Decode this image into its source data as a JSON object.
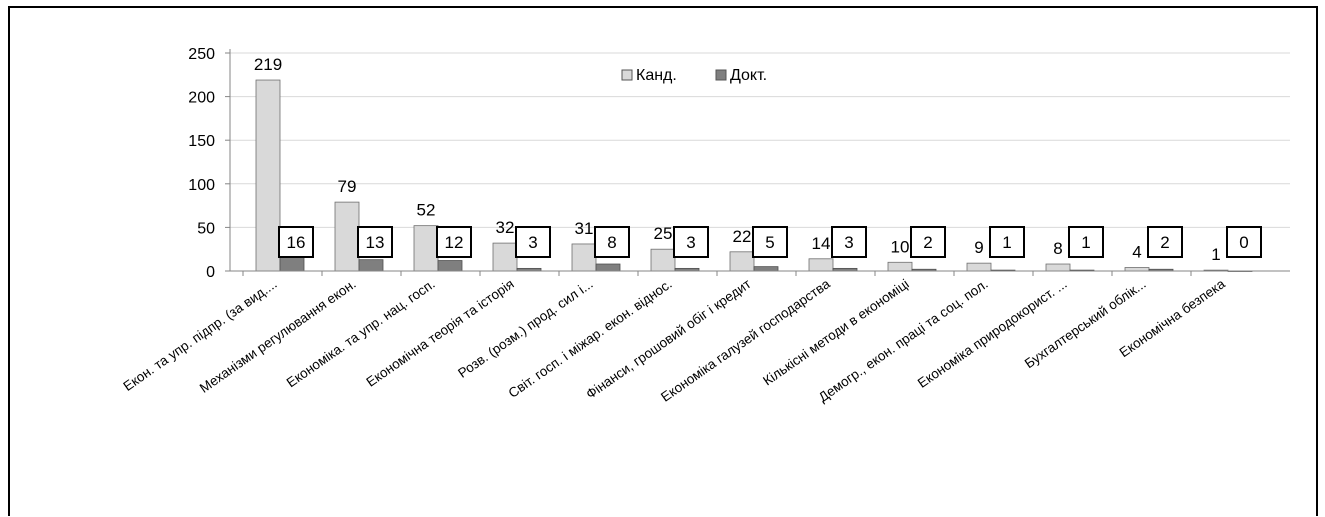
{
  "chart_data": {
    "type": "bar",
    "categories": [
      "Екон. та упр. підпр. (за вид....",
      "Механізми регулювання екон.",
      "Економіка. та упр. нац. госп.",
      "Економічна теорія та історія",
      "Розв. (розм.) прод. сил і...",
      "Світ. госп. і міжар. екон. віднос.",
      "Фінанси, грошовий обіг і кредит",
      "Економіка галузей господарства",
      "Кількісні методи в економіці",
      "Демогр., екон. праці та соц. пол.",
      "Економіка природокорист. ...",
      "Бухгалтерський облік...",
      "Економічна безпека"
    ],
    "series": [
      {
        "name": "Канд.",
        "values": [
          219,
          79,
          52,
          32,
          31,
          25,
          22,
          14,
          10,
          9,
          8,
          4,
          1
        ],
        "color": "#d9d9d9"
      },
      {
        "name": "Докт.",
        "values": [
          16,
          13,
          12,
          3,
          8,
          3,
          5,
          3,
          2,
          1,
          1,
          2,
          0
        ],
        "color": "#7f7f7f"
      }
    ],
    "kand_labels": [
      "219",
      "79",
      "52",
      "32",
      "31",
      "25",
      "22",
      "14",
      "10",
      "9",
      "8",
      "4",
      "1"
    ],
    "dokt_labels": [
      "16",
      "13",
      "12",
      "3",
      "8",
      "3",
      "5",
      "3",
      "2",
      "1",
      "1",
      "2",
      "0"
    ],
    "yticks": [
      "0",
      "50",
      "100",
      "150",
      "200",
      "250"
    ],
    "ylim": [
      0,
      250
    ],
    "grid": true,
    "legend": {
      "placement": "top-center",
      "items": [
        "Канд.",
        "Докт."
      ]
    },
    "title": "",
    "xlabel": "",
    "ylabel": ""
  }
}
